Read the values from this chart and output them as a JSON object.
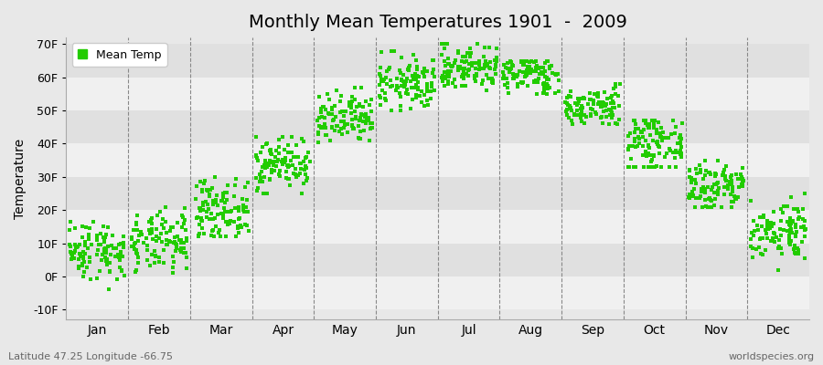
{
  "title": "Monthly Mean Temperatures 1901  -  2009",
  "ylabel": "Temperature",
  "bottom_left_label": "Latitude 47.25 Longitude -66.75",
  "bottom_right_label": "worldspecies.org",
  "legend_label": "Mean Temp",
  "marker_color": "#22cc00",
  "bg_color": "#e8e8e8",
  "band_colors": [
    "#f0f0f0",
    "#e0e0e0"
  ],
  "yticks": [
    -10,
    0,
    10,
    20,
    30,
    40,
    50,
    60,
    70
  ],
  "ytick_labels": [
    "-10F",
    "0F",
    "10F",
    "20F",
    "30F",
    "40F",
    "50F",
    "60F",
    "70F"
  ],
  "ylim": [
    -13,
    72
  ],
  "xlim": [
    0,
    12
  ],
  "months": [
    "Jan",
    "Feb",
    "Mar",
    "Apr",
    "May",
    "Jun",
    "Jul",
    "Aug",
    "Sep",
    "Oct",
    "Nov",
    "Dec"
  ],
  "monthly_data": [
    {
      "mean": 8,
      "std": 4.5,
      "min": -5,
      "max": 21
    },
    {
      "mean": 10,
      "std": 4.5,
      "min": 0,
      "max": 23
    },
    {
      "mean": 20,
      "std": 4.5,
      "min": 12,
      "max": 30
    },
    {
      "mean": 34,
      "std": 4.0,
      "min": 25,
      "max": 42
    },
    {
      "mean": 47,
      "std": 4.0,
      "min": 40,
      "max": 57
    },
    {
      "mean": 58,
      "std": 4.0,
      "min": 50,
      "max": 68
    },
    {
      "mean": 63,
      "std": 3.5,
      "min": 55,
      "max": 70
    },
    {
      "mean": 61,
      "std": 3.0,
      "min": 55,
      "max": 65
    },
    {
      "mean": 51,
      "std": 3.0,
      "min": 46,
      "max": 58
    },
    {
      "mean": 40,
      "std": 4.0,
      "min": 33,
      "max": 47
    },
    {
      "mean": 27,
      "std": 4.5,
      "min": 21,
      "max": 35
    },
    {
      "mean": 14,
      "std": 4.5,
      "min": 2,
      "max": 25
    }
  ],
  "n_years": 109,
  "seed": 42
}
